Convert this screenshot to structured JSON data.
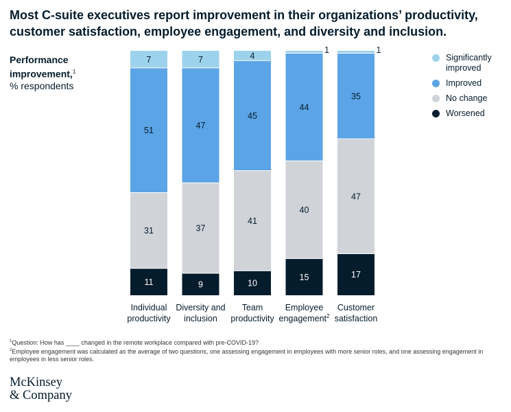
{
  "title": "Most C-suite executives report improvement in their organizations’ productivity, customer satisfaction, employee engagement, and diversity and inclusion.",
  "y_label": {
    "main": "Performance improvement,",
    "sup": "1",
    "unit": "% respondents"
  },
  "chart_data": {
    "type": "bar",
    "stacked": true,
    "title": "Most C-suite executives report improvement in their organizations’ productivity, customer satisfaction, employee engagement, and diversity and inclusion.",
    "ylabel": "Performance improvement, % respondents",
    "ylim": [
      0,
      100
    ],
    "categories": [
      {
        "line1": "Individual",
        "line2": "productivity",
        "sup": ""
      },
      {
        "line1": "Diversity and",
        "line2": "inclusion",
        "sup": ""
      },
      {
        "line1": "Team",
        "line2": "productivity",
        "sup": ""
      },
      {
        "line1": "Employee",
        "line2": "engagement",
        "sup": "2"
      },
      {
        "line1": "Customer",
        "line2": "satisfaction",
        "sup": ""
      }
    ],
    "series": [
      {
        "name": "Worsened",
        "color": "#051c2c",
        "text_color": "#ffffff",
        "values": [
          11,
          9,
          10,
          15,
          17
        ]
      },
      {
        "name": "No change",
        "color": "#d0d3d8",
        "text_color": "#051c2c",
        "values": [
          31,
          37,
          41,
          40,
          47
        ]
      },
      {
        "name": "Improved",
        "color": "#5ba4e6",
        "text_color": "#051c2c",
        "values": [
          51,
          47,
          45,
          44,
          35
        ]
      },
      {
        "name": "Significantly improved",
        "color": "#9dd2ec",
        "text_color": "#051c2c",
        "values": [
          7,
          7,
          4,
          1,
          1
        ]
      }
    ]
  },
  "legend": [
    {
      "label": "Significantly improved",
      "color": "#9dd2ec"
    },
    {
      "label": "Improved",
      "color": "#5ba4e6"
    },
    {
      "label": "No change",
      "color": "#d0d3d8"
    },
    {
      "label": "Worsened",
      "color": "#051c2c"
    }
  ],
  "footnotes": [
    {
      "sup": "1",
      "text": "Question: How has ____ changed in the remote workplace compared with pre-COVID-19?"
    },
    {
      "sup": "2",
      "text": "Employee engagement was calculated as the average of two questions, one assessing engagement in employees with more senior roles, and one assessing engagement in employees in less senior roles."
    }
  ],
  "logo": {
    "line1": "McKinsey",
    "line2": "& Company"
  }
}
